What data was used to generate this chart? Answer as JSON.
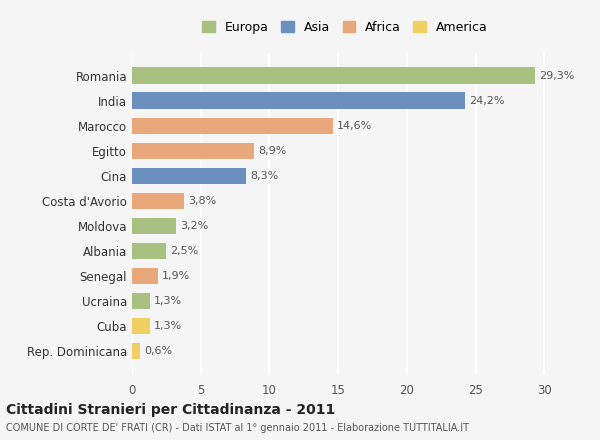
{
  "countries": [
    "Romania",
    "India",
    "Marocco",
    "Egitto",
    "Cina",
    "Costa d'Avorio",
    "Moldova",
    "Albania",
    "Senegal",
    "Ucraina",
    "Cuba",
    "Rep. Dominicana"
  ],
  "values": [
    29.3,
    24.2,
    14.6,
    8.9,
    8.3,
    3.8,
    3.2,
    2.5,
    1.9,
    1.3,
    1.3,
    0.6
  ],
  "labels": [
    "29,3%",
    "24,2%",
    "14,6%",
    "8,9%",
    "8,3%",
    "3,8%",
    "3,2%",
    "2,5%",
    "1,9%",
    "1,3%",
    "1,3%",
    "0,6%"
  ],
  "continents": [
    "Europa",
    "Asia",
    "Africa",
    "Africa",
    "Asia",
    "Africa",
    "Europa",
    "Europa",
    "Africa",
    "Europa",
    "America",
    "America"
  ],
  "colors": {
    "Europa": "#a8c080",
    "Asia": "#6b8fbf",
    "Africa": "#e8a87c",
    "America": "#f0d060"
  },
  "legend_order": [
    "Europa",
    "Asia",
    "Africa",
    "America"
  ],
  "xlim": [
    0,
    31
  ],
  "xticks": [
    0,
    5,
    10,
    15,
    20,
    25,
    30
  ],
  "title": "Cittadini Stranieri per Cittadinanza - 2011",
  "subtitle": "COMUNE DI CORTE DE' FRATI (CR) - Dati ISTAT al 1° gennaio 2011 - Elaborazione TUTTITALIA.IT",
  "bg_color": "#f5f5f5",
  "grid_color": "#ffffff",
  "bar_height": 0.65
}
